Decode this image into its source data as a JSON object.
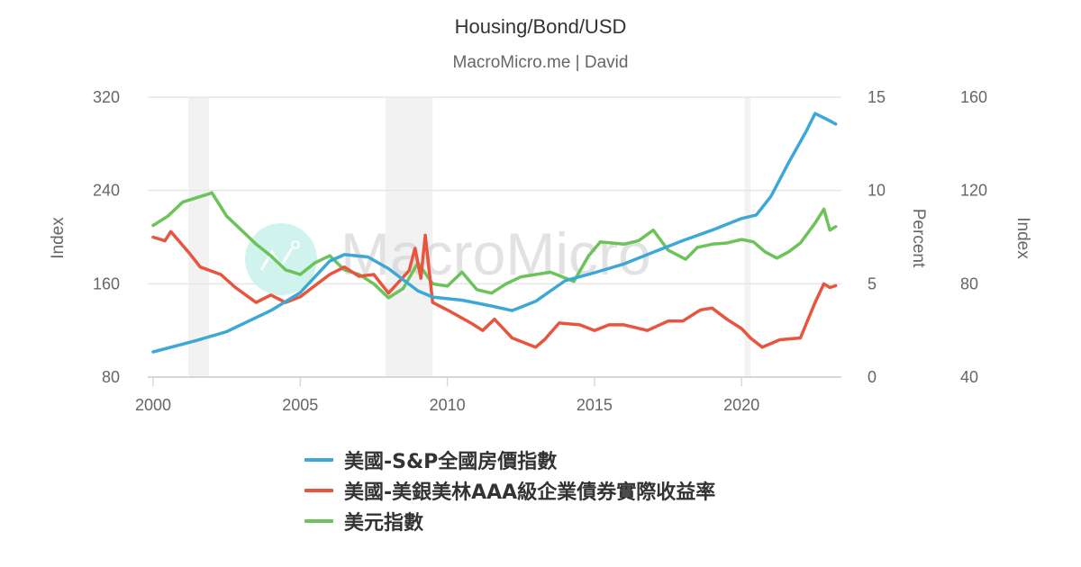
{
  "header": {
    "title": "Housing/Bond/USD",
    "subtitle": "MacroMicro.me | David"
  },
  "watermark": {
    "text": "MacroMicro",
    "logo_icon": "chart-line-icon"
  },
  "colors": {
    "housing": "#3da8d8",
    "bond": "#e8553e",
    "usd": "#6cc35a",
    "recession_band": "#f2f2f2",
    "grid": "#e6e6e6",
    "watermark_circle": "#c8f2ea"
  },
  "legend": {
    "items": [
      {
        "label": "美國-S&P全國房價指數",
        "color": "#3da8d8"
      },
      {
        "label": "美國-美銀美林AAA級企業債券實際收益率",
        "color": "#e8553e"
      },
      {
        "label": "美元指數",
        "color": "#6cc35a"
      }
    ]
  },
  "chart_data": {
    "type": "line",
    "title": "Housing/Bond/USD",
    "subtitle": "MacroMicro.me | David",
    "xlabel": "",
    "x_ticks": [
      "2000",
      "2005",
      "2010",
      "2015",
      "2020"
    ],
    "xlim": [
      2000,
      2023.3
    ],
    "grid": true,
    "legend_position": "bottom",
    "axes": [
      {
        "id": "left",
        "title": "Index",
        "side": "left",
        "range": [
          80,
          320
        ],
        "ticks": [
          "80",
          "160",
          "240",
          "320"
        ]
      },
      {
        "id": "percent",
        "title": "Percent",
        "side": "right",
        "range": [
          0,
          15
        ],
        "ticks": [
          "0",
          "5",
          "10",
          "15"
        ]
      },
      {
        "id": "right_index",
        "title": "Index",
        "side": "right-outer",
        "range": [
          40,
          160
        ],
        "ticks": [
          "40",
          "80",
          "120",
          "160"
        ]
      }
    ],
    "recession_bands": [
      [
        2001.2,
        2001.9
      ],
      [
        2007.9,
        2009.5
      ],
      [
        2020.1,
        2020.3
      ]
    ],
    "series": [
      {
        "name": "美國-S&P全國房價指數",
        "axis": "left",
        "color": "#3da8d8",
        "x": [
          2000,
          2001.5,
          2002.5,
          2004,
          2005,
          2006,
          2006.5,
          2007.3,
          2008,
          2009,
          2009.5,
          2010.5,
          2011.5,
          2012.2,
          2013,
          2014,
          2015,
          2016,
          2017,
          2018,
          2019,
          2020,
          2020.5,
          2021,
          2021.6,
          2022.2,
          2022.5,
          2022.9,
          2023.2
        ],
        "values": [
          101.6,
          111.6,
          119,
          137,
          152.5,
          179.5,
          185,
          183,
          173,
          154,
          148.6,
          146,
          141,
          137,
          145,
          162.6,
          169.5,
          177,
          187,
          197,
          206,
          216,
          219,
          235,
          264,
          291,
          306,
          301,
          297
        ]
      },
      {
        "name": "美國-美銀美林AAA級企業債券實際收益率",
        "axis": "percent",
        "color": "#e8553e",
        "x": [
          2000,
          2000.4,
          2000.6,
          2001.2,
          2001.6,
          2002.3,
          2002.8,
          2003.5,
          2004,
          2004.5,
          2005,
          2005.5,
          2006,
          2006.5,
          2007,
          2007.5,
          2008,
          2008.7,
          2008.9,
          2009.1,
          2009.25,
          2009.5,
          2010,
          2010.8,
          2011.2,
          2011.6,
          2012.2,
          2013,
          2013.3,
          2013.8,
          2014.5,
          2015,
          2015.5,
          2016,
          2016.8,
          2017.5,
          2018,
          2018.6,
          2019,
          2019.5,
          2020,
          2020.3,
          2020.7,
          2021.3,
          2022,
          2022.5,
          2022.8,
          2023,
          2023.2
        ],
        "values": [
          7.5,
          7.3,
          7.8,
          6.7,
          5.9,
          5.5,
          4.8,
          4.0,
          4.4,
          4.0,
          4.3,
          4.9,
          5.5,
          5.9,
          5.4,
          5.5,
          4.5,
          5.7,
          6.9,
          5.3,
          7.6,
          4.0,
          3.6,
          2.9,
          2.5,
          3.1,
          2.1,
          1.6,
          2.0,
          2.9,
          2.8,
          2.5,
          2.8,
          2.8,
          2.5,
          3.0,
          3.0,
          3.6,
          3.7,
          3.1,
          2.6,
          2.1,
          1.6,
          2.0,
          2.1,
          4.0,
          5.0,
          4.8,
          4.9
        ]
      },
      {
        "name": "美元指數",
        "axis": "right_index",
        "color": "#6cc35a",
        "x": [
          2000,
          2000.5,
          2001,
          2001.5,
          2002,
          2002.5,
          2003,
          2003.5,
          2004,
          2004.5,
          2005,
          2005.5,
          2006,
          2006.5,
          2007,
          2007.5,
          2008,
          2008.5,
          2009,
          2009.5,
          2010,
          2010.5,
          2011,
          2011.5,
          2012,
          2012.5,
          2013,
          2013.5,
          2014.3,
          2014.8,
          2015.2,
          2016,
          2016.5,
          2017,
          2017.5,
          2018.1,
          2018.5,
          2019,
          2019.5,
          2020,
          2020.4,
          2020.8,
          2021.2,
          2021.6,
          2022,
          2022.5,
          2022.8,
          2023,
          2023.2
        ],
        "values": [
          105,
          109,
          115,
          117,
          119,
          109,
          103,
          97,
          92,
          86,
          84,
          89,
          92,
          86,
          84,
          80,
          74,
          78,
          89,
          80,
          79,
          85,
          77.5,
          76,
          80,
          83,
          84,
          85,
          81,
          92,
          98,
          97,
          98.5,
          103,
          94.5,
          90.5,
          95.6,
          97,
          97.5,
          99,
          98,
          93.7,
          91,
          93.7,
          97.5,
          106,
          112,
          103,
          104.5
        ]
      }
    ]
  }
}
